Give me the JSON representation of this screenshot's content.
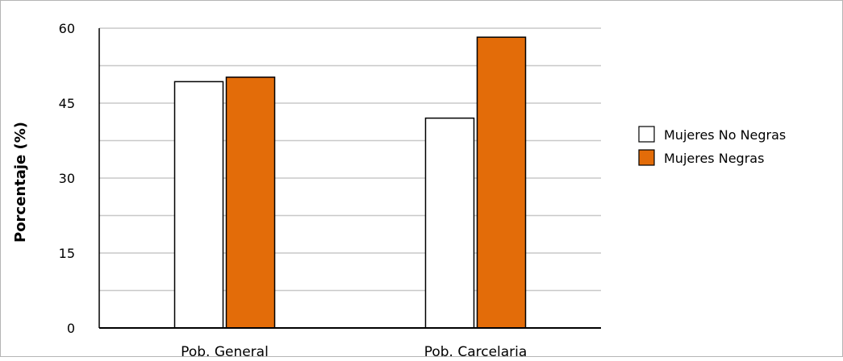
{
  "chart_data": {
    "type": "bar",
    "categories": [
      "Pob. General",
      "Pob. Carcelaria"
    ],
    "series": [
      {
        "name": "Mujeres No Negras",
        "values": [
          49.3,
          42
        ],
        "color": "#ffffff"
      },
      {
        "name": "Mujeres Negras",
        "values": [
          50.2,
          58.2
        ],
        "color": "#e36c09"
      }
    ],
    "title": "",
    "xlabel": "",
    "ylabel": "Porcentaje (%)",
    "ylim": [
      0,
      60
    ],
    "yticks": [
      0,
      15,
      30,
      45,
      60
    ],
    "grid": true,
    "legend_position": "right"
  }
}
